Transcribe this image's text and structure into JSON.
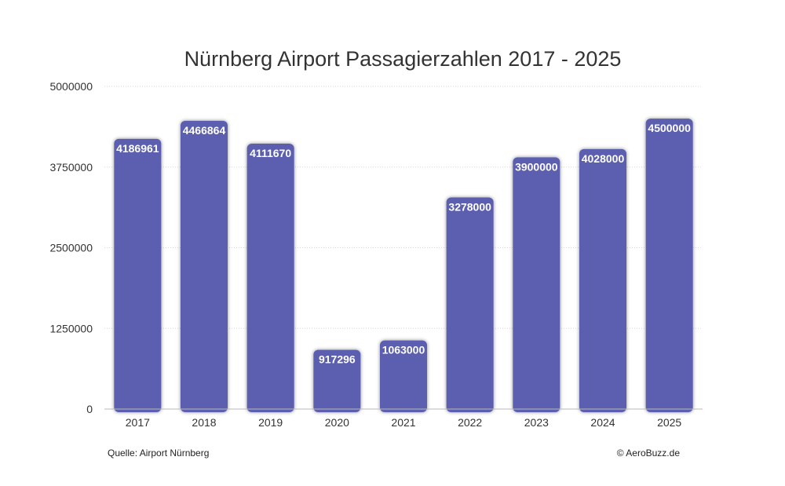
{
  "chart_data": {
    "type": "bar",
    "title": "Nürnberg Airport Passagierzahlen 2017 - 2025",
    "categories": [
      "2017",
      "2018",
      "2019",
      "2020",
      "2021",
      "2022",
      "2023",
      "2024",
      "2025"
    ],
    "values": [
      4186961,
      4466864,
      4111670,
      917296,
      1063000,
      3278000,
      3900000,
      4028000,
      4500000
    ],
    "value_labels": [
      "4186961",
      "4466864",
      "4111670",
      "917296",
      "1063000",
      "3278000",
      "3900000",
      "4028000",
      "4500000"
    ],
    "yticks": [
      "0",
      "1250000",
      "2500000",
      "3750000",
      "5000000"
    ],
    "ytick_values": [
      0,
      1250000,
      2500000,
      3750000,
      5000000
    ],
    "ylim": [
      0,
      5000000
    ],
    "xlabel": "",
    "ylabel": "",
    "grid": true,
    "bar_color": "#5b5fb0",
    "grid_color": "#d8d8d8"
  },
  "footer": {
    "source": "Quelle: Airport Nürnberg",
    "copyright": "© AeroBuzz.de"
  }
}
